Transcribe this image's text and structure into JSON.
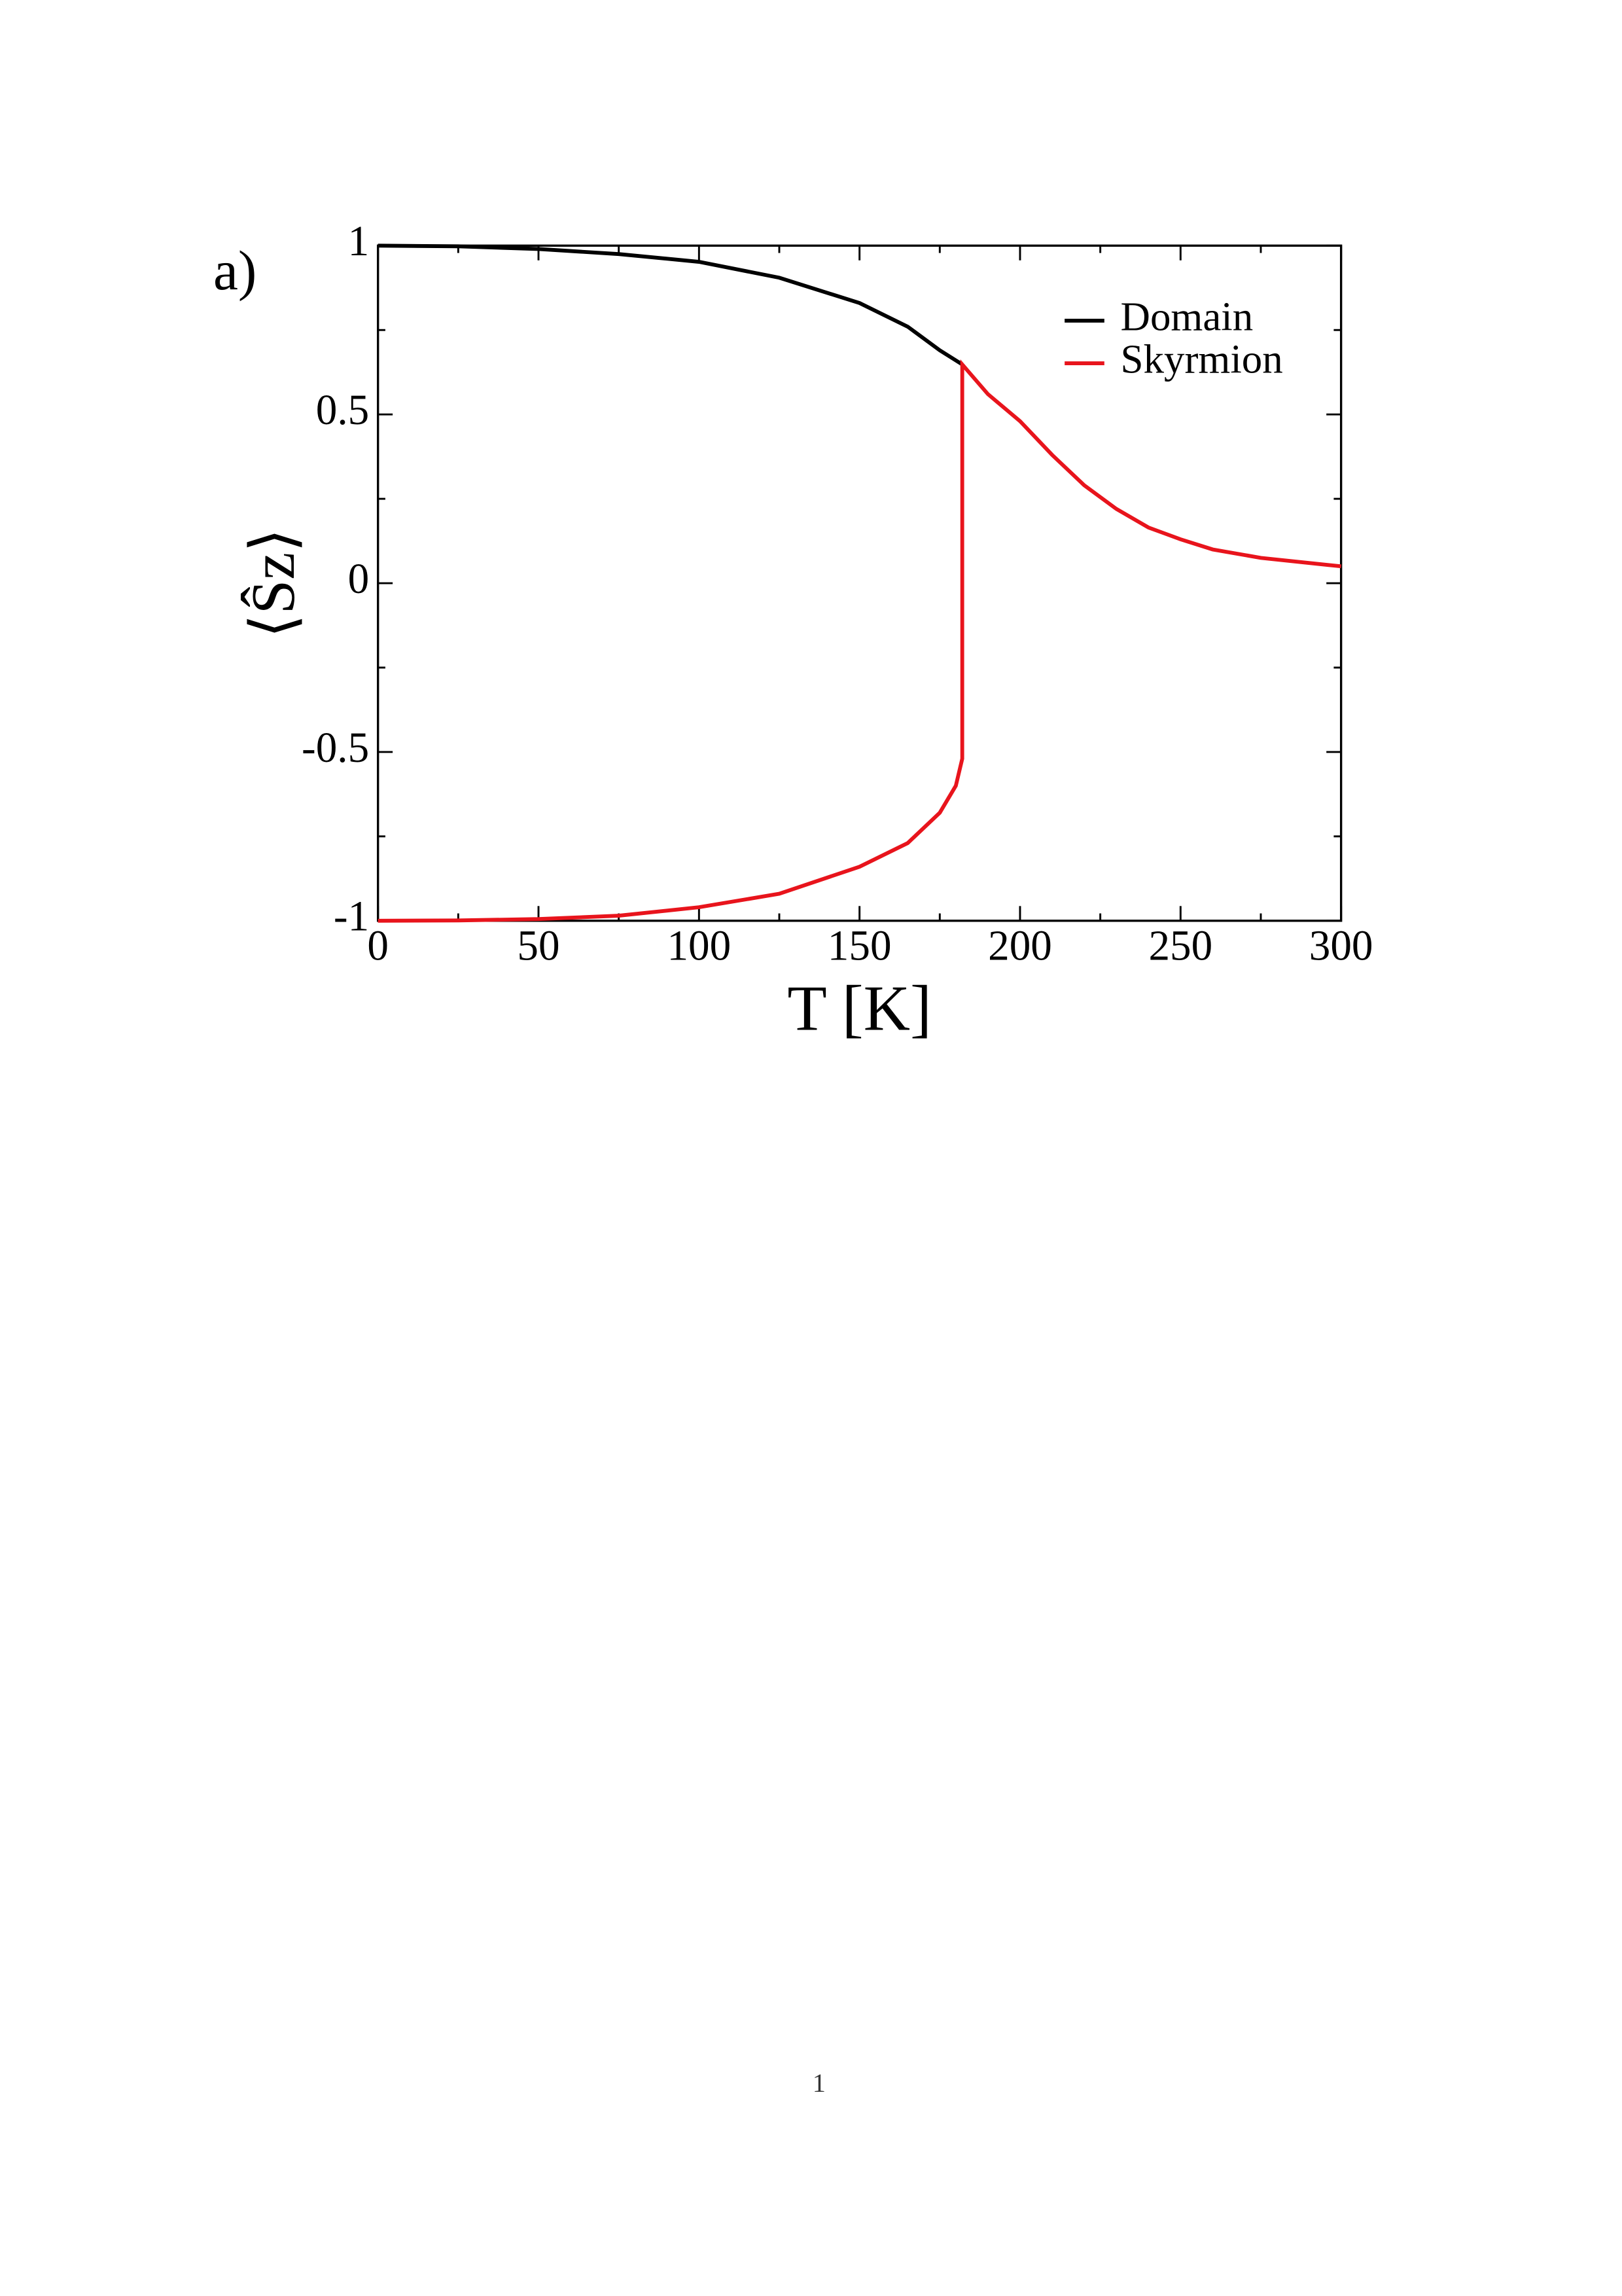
{
  "panel_label": "a)",
  "page_number": "1",
  "chart_data": {
    "type": "line",
    "x_label": "T [K]",
    "y_label": "⟨Ŝz⟩",
    "xlim": [
      0,
      300
    ],
    "xticks": [
      0,
      50,
      100,
      150,
      200,
      250,
      300
    ],
    "ylim": [
      -1,
      1
    ],
    "yticks": [
      -1,
      -0.5,
      0,
      0.5,
      1
    ],
    "legend": "upper right",
    "series": [
      {
        "name": "Domain",
        "color": "#000000",
        "x": [
          0,
          25,
          50,
          75,
          100,
          125,
          150,
          165,
          175,
          182
        ],
        "values": [
          1,
          0.998,
          0.99,
          0.975,
          0.952,
          0.905,
          0.83,
          0.76,
          0.69,
          0.648
        ]
      },
      {
        "name": "Skyrmion",
        "color": "#e8141c",
        "x": [
          0,
          25,
          50,
          75,
          100,
          125,
          150,
          165,
          175,
          180,
          182,
          182,
          190,
          200,
          210,
          220,
          230,
          240,
          250,
          260,
          275,
          300
        ],
        "values": [
          -1,
          -0.999,
          -0.995,
          -0.985,
          -0.96,
          -0.92,
          -0.84,
          -0.77,
          -0.68,
          -0.6,
          -0.52,
          0.648,
          0.56,
          0.48,
          0.38,
          0.29,
          0.22,
          0.165,
          0.13,
          0.1,
          0.075,
          0.05
        ]
      }
    ]
  }
}
